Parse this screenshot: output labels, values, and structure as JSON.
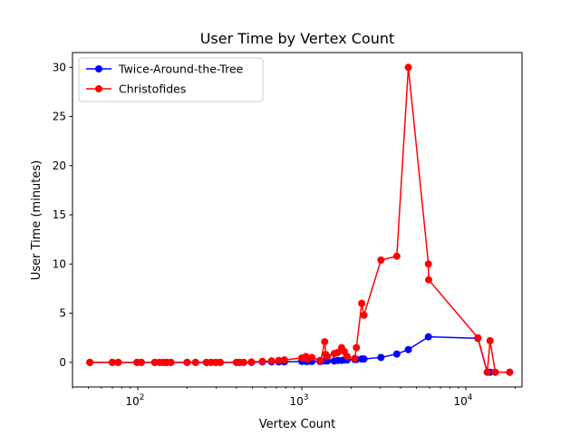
{
  "chart_data": {
    "type": "line",
    "title": "User Time by Vertex Count",
    "xlabel": "Vertex Count",
    "ylabel": "User Time (minutes)",
    "x_scale": "log",
    "xlim": [
      40,
      22000
    ],
    "ylim": [
      -2.5,
      31.5
    ],
    "y_ticks": [
      0,
      5,
      10,
      15,
      20,
      25,
      30
    ],
    "x_ticks": [
      {
        "value": 100,
        "base": "10",
        "exp": "2"
      },
      {
        "value": 1000,
        "base": "10",
        "exp": "3"
      },
      {
        "value": 10000,
        "base": "10",
        "exp": "4"
      }
    ],
    "grid": false,
    "legend": "top-left",
    "series": [
      {
        "name": "Twice-Around-the-Tree",
        "color": "#0000ff",
        "x": [
          51,
          70,
          76,
          99,
          105,
          127,
          136,
          144,
          150,
          159,
          200,
          225,
          262,
          280,
          299,
          318,
          400,
          417,
          442,
          493,
          575,
          654,
          724,
          783,
          1000,
          1060,
          1084,
          1150,
          1291,
          1304,
          1379,
          1400,
          1432,
          1577,
          1655,
          1748,
          1817,
          1889,
          2103,
          2152,
          2319,
          2392,
          3038,
          3795,
          4461,
          5915,
          11849,
          13509,
          14051,
          15112,
          18512
        ],
        "y": [
          0,
          0,
          0,
          0,
          0,
          0,
          0,
          0,
          0,
          0,
          0,
          0,
          0,
          0,
          0,
          0,
          0,
          0,
          0,
          0,
          0.05,
          0.05,
          0.05,
          0.05,
          0.1,
          0.1,
          0.1,
          0.1,
          0.1,
          0.1,
          0.15,
          0.2,
          0.15,
          0.15,
          0.2,
          0.2,
          0.25,
          0.25,
          0.3,
          0.3,
          0.35,
          0.35,
          0.5,
          0.85,
          1.3,
          2.6,
          2.45,
          -1,
          -1,
          -1,
          -1
        ]
      },
      {
        "name": "Christofides",
        "color": "#ff0000",
        "x": [
          51,
          70,
          76,
          99,
          105,
          127,
          136,
          144,
          150,
          159,
          200,
          225,
          262,
          280,
          299,
          318,
          400,
          417,
          442,
          493,
          575,
          654,
          724,
          783,
          1000,
          1060,
          1084,
          1150,
          1291,
          1304,
          1379,
          1400,
          1432,
          1577,
          1655,
          1748,
          1817,
          1889,
          2103,
          2152,
          2319,
          2392,
          3038,
          3795,
          4461,
          5915,
          5934,
          11849,
          13509,
          14051,
          15112,
          18512
        ],
        "y": [
          0,
          0,
          0,
          0,
          0,
          0,
          0,
          0,
          0,
          0,
          0,
          0,
          0,
          0,
          0,
          0,
          0,
          0,
          0,
          0.05,
          0.1,
          0.15,
          0.2,
          0.25,
          0.45,
          0.6,
          0.35,
          0.5,
          0.2,
          0.15,
          2.1,
          0.8,
          0.6,
          0.9,
          1.0,
          1.5,
          1.1,
          0.6,
          0.4,
          1.5,
          6.0,
          4.8,
          10.4,
          10.8,
          30.0,
          10.0,
          8.4,
          2.5,
          -1,
          2.2,
          -1,
          -1
        ]
      }
    ]
  }
}
